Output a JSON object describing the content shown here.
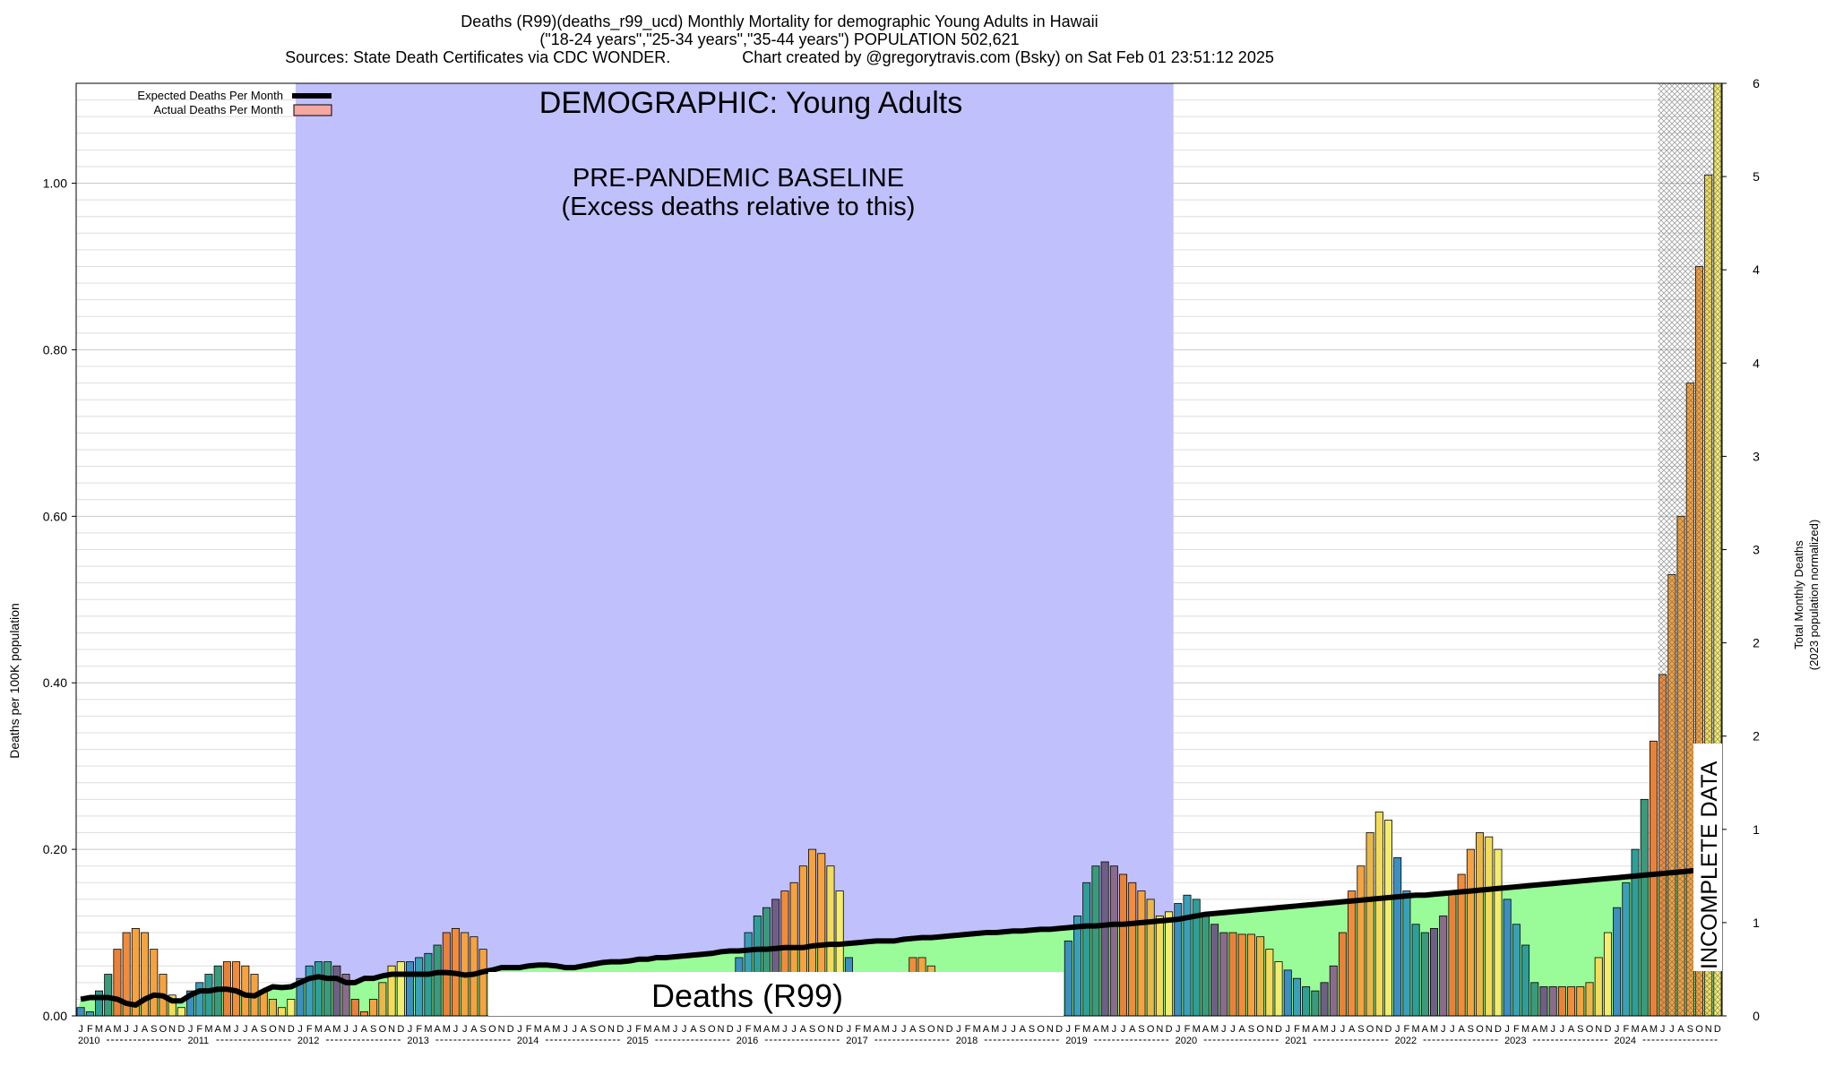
{
  "title": {
    "line1": "Deaths (R99)(deaths_r99_ucd) Monthly Mortality for demographic Young Adults in Hawaii",
    "line2": "(\"18-24 years\",\"25-34 years\",\"35-44 years\") POPULATION 502,621",
    "line3_left": "Sources: State Death Certificates via CDC WONDER.",
    "line3_right": "Chart created by @gregorytravis.com (Bsky) on Sat Feb 01 23:51:12 2025"
  },
  "legend": {
    "expected": "Expected Deaths Per Month",
    "actual": "Actual Deaths Per Month"
  },
  "annotations": {
    "demographic": "DEMOGRAPHIC: Young Adults",
    "baseline_line1": "PRE-PANDEMIC BASELINE",
    "baseline_line2": "(Excess deaths relative to this)",
    "deaths_box": "Deaths (R99)",
    "incomplete": "INCOMPLETE DATA"
  },
  "colors": {
    "baseline_shade": "#c0c0fc",
    "expected_fill": "#99fc99",
    "expected_fill_baseline": "#6ad49c",
    "expected_line": "#000000",
    "actual_fill": "#f4a8a0",
    "incomplete_hatch": "#888888"
  },
  "chart_data": {
    "type": "bar",
    "xlabel": "",
    "ylabel": "Deaths per 100K population",
    "y2label_line1": "Total Monthly Deaths",
    "y2label_line2": "(2023 population normalized)",
    "ylim": [
      0,
      1.12
    ],
    "y_ticks": [
      "0.00",
      "0.20",
      "0.40",
      "0.60",
      "0.80",
      "1.00"
    ],
    "y2_ticks": [
      "0",
      "1",
      "1",
      "2",
      "2",
      "3",
      "3",
      "4",
      "4",
      "5",
      "6"
    ],
    "month_ticks": [
      "J",
      "F",
      "M",
      "A",
      "M",
      "J",
      "J",
      "A",
      "S",
      "O",
      "N",
      "D"
    ],
    "years": [
      "2010",
      "2011",
      "2012",
      "2013",
      "2014",
      "2015",
      "2016",
      "2017",
      "2018",
      "2019",
      "2020",
      "2021",
      "2022",
      "2023",
      "2024"
    ],
    "baseline_years": [
      "2012",
      "2013",
      "2014",
      "2015",
      "2016",
      "2017",
      "2018",
      "2019"
    ],
    "incomplete_from": "2024-06",
    "grid": true,
    "legend_position": "top-left",
    "series": [
      {
        "name": "Actual Deaths Per Month",
        "values": [
          0.01,
          0.005,
          0.03,
          0.05,
          0.08,
          0.1,
          0.105,
          0.1,
          0.08,
          0.05,
          0.025,
          0.01,
          0.03,
          0.04,
          0.05,
          0.06,
          0.065,
          0.065,
          0.06,
          0.05,
          0.03,
          0.02,
          0.01,
          0.02,
          0.045,
          0.06,
          0.065,
          0.065,
          0.06,
          0.05,
          0.02,
          0.005,
          0.02,
          0.04,
          0.06,
          0.065,
          0.065,
          0.07,
          0.075,
          0.085,
          0.1,
          0.105,
          0.1,
          0.095,
          0.08,
          0.05,
          0.03,
          0.03,
          0.01,
          0.01,
          0.01,
          0.01,
          0.01,
          0.01,
          0.01,
          0.01,
          0.01,
          0.01,
          0.01,
          0.01,
          0.01,
          0.01,
          0.01,
          0.01,
          0.01,
          0.01,
          0.01,
          0.01,
          0.01,
          0.02,
          0.02,
          0.02,
          0.07,
          0.1,
          0.12,
          0.13,
          0.14,
          0.15,
          0.16,
          0.18,
          0.2,
          0.195,
          0.18,
          0.15,
          0.07,
          0.05,
          0.02,
          0.01,
          0.02,
          0.03,
          0.05,
          0.07,
          0.07,
          0.06,
          0.05,
          0.04,
          0.03,
          0.02,
          0.03,
          0.03,
          0.01,
          0.02,
          0.01,
          0.02,
          0.01,
          0.02,
          0.01,
          0.01,
          0.09,
          0.12,
          0.16,
          0.18,
          0.185,
          0.18,
          0.17,
          0.16,
          0.15,
          0.14,
          0.12,
          0.125,
          0.135,
          0.145,
          0.14,
          0.12,
          0.11,
          0.1,
          0.1,
          0.098,
          0.098,
          0.095,
          0.08,
          0.065,
          0.055,
          0.045,
          0.035,
          0.03,
          0.04,
          0.06,
          0.1,
          0.15,
          0.18,
          0.22,
          0.245,
          0.235,
          0.19,
          0.15,
          0.11,
          0.1,
          0.105,
          0.12,
          0.15,
          0.17,
          0.2,
          0.22,
          0.215,
          0.2,
          0.14,
          0.11,
          0.085,
          0.04,
          0.035,
          0.035,
          0.035,
          0.035,
          0.035,
          0.04,
          0.07,
          0.1,
          0.13,
          0.16,
          0.2,
          0.26,
          0.33,
          0.41,
          0.53,
          0.6,
          0.76,
          0.9,
          1.01,
          1.12
        ]
      },
      {
        "name": "Expected Deaths Per Month",
        "values": [
          0.02,
          0.022,
          0.022,
          0.022,
          0.02,
          0.015,
          0.013,
          0.02,
          0.025,
          0.024,
          0.018,
          0.018,
          0.025,
          0.03,
          0.03,
          0.032,
          0.032,
          0.03,
          0.025,
          0.024,
          0.03,
          0.035,
          0.034,
          0.035,
          0.04,
          0.045,
          0.047,
          0.045,
          0.045,
          0.04,
          0.04,
          0.045,
          0.045,
          0.048,
          0.05,
          0.05,
          0.05,
          0.05,
          0.05,
          0.052,
          0.052,
          0.051,
          0.049,
          0.05,
          0.053,
          0.055,
          0.058,
          0.058,
          0.058,
          0.06,
          0.061,
          0.061,
          0.06,
          0.058,
          0.058,
          0.06,
          0.062,
          0.064,
          0.065,
          0.065,
          0.066,
          0.068,
          0.068,
          0.07,
          0.07,
          0.071,
          0.072,
          0.073,
          0.074,
          0.075,
          0.077,
          0.078,
          0.078,
          0.079,
          0.08,
          0.08,
          0.081,
          0.082,
          0.082,
          0.082,
          0.084,
          0.085,
          0.086,
          0.086,
          0.087,
          0.088,
          0.089,
          0.09,
          0.09,
          0.09,
          0.092,
          0.093,
          0.094,
          0.094,
          0.095,
          0.096,
          0.097,
          0.098,
          0.099,
          0.1,
          0.1,
          0.101,
          0.102,
          0.102,
          0.103,
          0.104,
          0.104,
          0.105,
          0.106,
          0.107,
          0.108,
          0.108,
          0.109,
          0.11,
          0.11,
          0.111,
          0.112,
          0.113,
          0.114,
          0.115,
          0.116,
          0.118,
          0.12,
          0.122,
          0.123,
          0.124,
          0.125,
          0.126,
          0.127,
          0.128,
          0.129,
          0.13,
          0.131,
          0.132,
          0.133,
          0.134,
          0.135,
          0.136,
          0.137,
          0.138,
          0.139,
          0.14,
          0.141,
          0.142,
          0.143,
          0.144,
          0.145,
          0.145,
          0.146,
          0.147,
          0.148,
          0.149,
          0.15,
          0.151,
          0.152,
          0.153,
          0.154,
          0.155,
          0.156,
          0.157,
          0.158,
          0.159,
          0.16,
          0.161,
          0.162,
          0.163,
          0.164,
          0.165,
          0.166,
          0.167,
          0.168,
          0.169,
          0.17,
          0.171,
          0.172,
          0.173,
          0.174,
          0.175,
          0.176,
          0.177
        ]
      }
    ]
  }
}
